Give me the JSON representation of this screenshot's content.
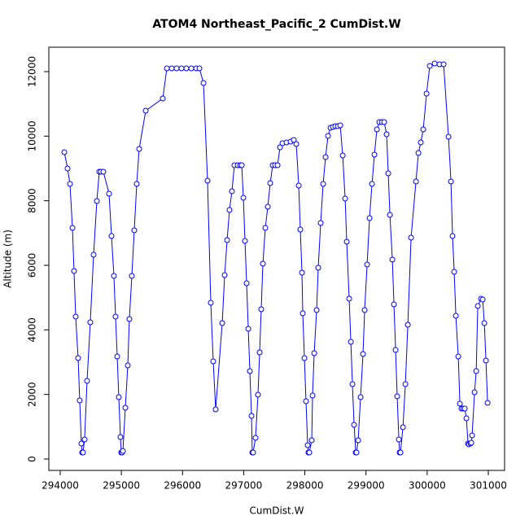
{
  "chart_data": {
    "type": "line",
    "title": "ATOM4 Northeast_Pacific_2 CumDist.W",
    "x_label": "CumDist.W",
    "y_label": "Altitude (m)",
    "color": "#0000ff",
    "xlim": [
      293814,
      301266
    ],
    "ylim": [
      -353,
      12756
    ],
    "xticks": [
      294000,
      295000,
      296000,
      297000,
      298000,
      299000,
      300000,
      301000
    ],
    "yticks": [
      0,
      2000,
      4000,
      6000,
      8000,
      10000,
      12000
    ],
    "x": [
      294067,
      294120,
      294160,
      294200,
      294226,
      294253,
      294293,
      294319,
      294346,
      294359,
      294373,
      294399,
      294439,
      294492,
      294546,
      294599,
      294639,
      294666,
      294705,
      294799,
      294839,
      294878,
      294905,
      294932,
      294958,
      294985,
      294998,
      295012,
      295025,
      295065,
      295105,
      295131,
      295171,
      295211,
      295251,
      295291,
      295398,
      295677,
      295744,
      295823,
      295903,
      295983,
      296063,
      296143,
      296223,
      296276,
      296343,
      296409,
      296462,
      296502,
      296542,
      296649,
      296689,
      296729,
      296768,
      296808,
      296848,
      296902,
      296942,
      296968,
      296995,
      297021,
      297048,
      297075,
      297101,
      297128,
      297141,
      297154,
      297194,
      297234,
      297261,
      297287,
      297314,
      297354,
      297394,
      297434,
      297474,
      297514,
      297554,
      297594,
      297634,
      297700,
      297767,
      297820,
      297860,
      297900,
      297926,
      297953,
      297966,
      297993,
      298019,
      298046,
      298059,
      298073,
      298113,
      298126,
      298153,
      298193,
      298219,
      298259,
      298299,
      298339,
      298379,
      298419,
      298459,
      298499,
      298539,
      298579,
      298619,
      298659,
      298685,
      298725,
      298752,
      298778,
      298805,
      298832,
      298845,
      298872,
      298911,
      298951,
      298978,
      299018,
      299058,
      299098,
      299138,
      299178,
      299218,
      299258,
      299297,
      299337,
      299364,
      299391,
      299431,
      299457,
      299484,
      299510,
      299537,
      299550,
      299564,
      299604,
      299644,
      299684,
      299737,
      299817,
      299857,
      299896,
      299936,
      299990,
      300043,
      300123,
      300202,
      300269,
      300349,
      300389,
      300415,
      300442,
      300469,
      300509,
      300535,
      300562,
      300588,
      300615,
      300642,
      300668,
      300682,
      300708,
      300722,
      300735,
      300775,
      300802,
      300828,
      300881,
      300908,
      300935,
      300961,
      300988
    ],
    "values": [
      9504,
      9000,
      8521,
      7160,
      5823,
      4412,
      3126,
      1815,
      479,
      202,
      202,
      605,
      2420,
      4235,
      6328,
      7992,
      8899,
      8899,
      8899,
      8218,
      6908,
      5672,
      4412,
      3176,
      1916,
      681,
      202,
      202,
      250,
      1588,
      2899,
      4336,
      5672,
      7084,
      8521,
      9605,
      10790,
      11168,
      12101,
      12101,
      12101,
      12101,
      12101,
      12101,
      12101,
      12101,
      11647,
      8622,
      4840,
      3025,
      1538,
      4210,
      5697,
      6782,
      7714,
      8294,
      9101,
      9101,
      9101,
      9101,
      8092,
      6756,
      5445,
      4034,
      2723,
      1336,
      202,
      202,
      655,
      1992,
      3303,
      4639,
      6050,
      7160,
      7815,
      8546,
      9101,
      9101,
      9101,
      9656,
      9781,
      9807,
      9832,
      9882,
      9756,
      8470,
      7109,
      5773,
      4513,
      3126,
      1790,
      429,
      202,
      202,
      580,
      1966,
      3277,
      4613,
      5924,
      7311,
      8521,
      9353,
      10008,
      10260,
      10285,
      10310,
      10310,
      10335,
      9403,
      8067,
      6731,
      4966,
      3630,
      2319,
      1059,
      202,
      202,
      580,
      1916,
      3252,
      4613,
      6025,
      7462,
      8521,
      9429,
      10210,
      10437,
      10437,
      10437,
      10059,
      8849,
      7563,
      6176,
      4790,
      3378,
      1941,
      605,
      202,
      202,
      983,
      2319,
      4160,
      6857,
      8597,
      9479,
      9807,
      10210,
      11319,
      12176,
      12252,
      12227,
      12227,
      9983,
      8597,
      6908,
      5798,
      4437,
      3176,
      1714,
      1563,
      1563,
      1563,
      1260,
      479,
      454,
      479,
      504,
      731,
      2067,
      2723,
      4740,
      4966,
      4941,
      4210,
      3050,
      1740
    ]
  }
}
